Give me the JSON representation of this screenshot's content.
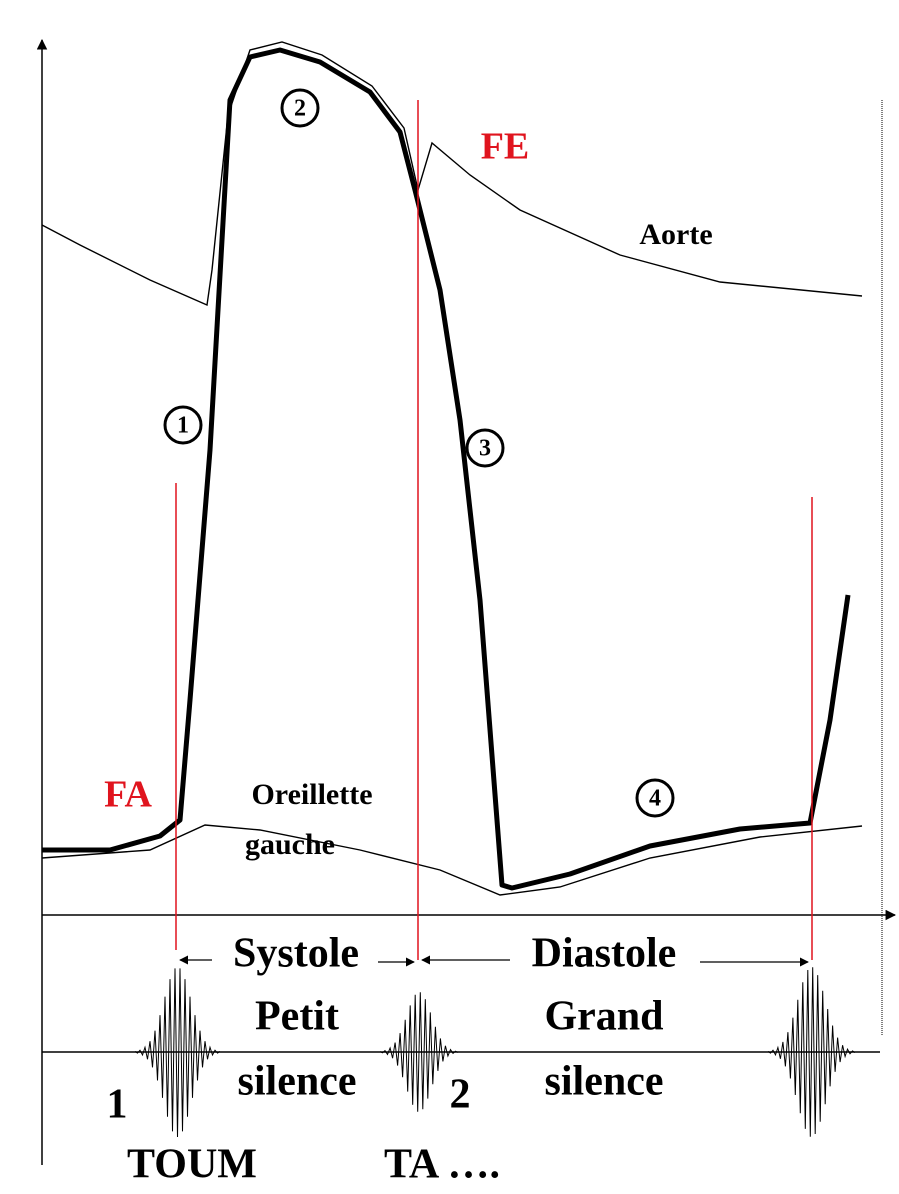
{
  "valves": {
    "closing_aortic": "FE",
    "closing_mitral": "FA"
  },
  "curves": {
    "aorta": "Aorte",
    "atrium": [
      "Oreillette",
      "gauche"
    ]
  },
  "phases": [
    "1",
    "2",
    "3",
    "4"
  ],
  "periods": {
    "systole": {
      "name": "Systole",
      "silence": [
        "Petit",
        "silence"
      ]
    },
    "diastole": {
      "name": "Diastole",
      "silence": [
        "Grand",
        "silence"
      ]
    }
  },
  "sounds": [
    {
      "number": "1",
      "name": "TOUM"
    },
    {
      "number": "2",
      "name": "TA …."
    }
  ]
}
